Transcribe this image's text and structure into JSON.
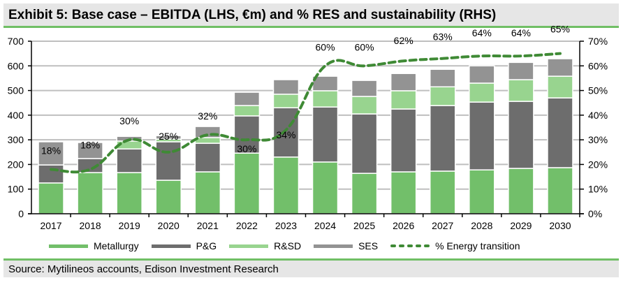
{
  "header": {
    "title": "Exhibit 5: Base case – EBITDA (LHS, €m) and % RES and sustainability (RHS)"
  },
  "footer": {
    "source": "Source: Mytilineos accounts, Edison Investment Research"
  },
  "colors": {
    "metallurgy": "#72bf6a",
    "pg": "#6d6d6d",
    "rsd": "#98d48f",
    "ses": "#939393",
    "energy_transition": "#3f8a35",
    "gridline": "#bfbfbf",
    "accent_rule": "#70bf65",
    "banner_bg": "#e6e6e6"
  },
  "chart_data": {
    "type": "bar",
    "stacked": true,
    "title": "Exhibit 5: Base case – EBITDA (LHS, €m) and % RES and sustainability (RHS)",
    "xlabel": "",
    "ylabel": "EBITDA (€m)",
    "y2label": "% RES and sustainability",
    "categories": [
      "2017",
      "2018",
      "2019",
      "2020",
      "2021",
      "2022",
      "2023",
      "2024",
      "2025",
      "2026",
      "2027",
      "2028",
      "2029",
      "2030"
    ],
    "ylim": [
      0,
      700
    ],
    "yticks": [
      "0",
      "100",
      "200",
      "300",
      "400",
      "500",
      "600",
      "700"
    ],
    "y2lim": [
      0,
      70
    ],
    "y2ticks": [
      "0%",
      "10%",
      "20%",
      "30%",
      "40%",
      "50%",
      "60%",
      "70%"
    ],
    "grid": true,
    "legend_position": "bottom",
    "series": [
      {
        "name": "Metallurgy",
        "key": "metallurgy",
        "axis": "left",
        "type": "bar",
        "values": [
          125,
          167,
          167,
          136,
          170,
          246,
          230,
          210,
          164,
          170,
          173,
          178,
          184,
          187
        ]
      },
      {
        "name": "P&G",
        "key": "pg",
        "axis": "left",
        "type": "bar",
        "values": [
          73,
          57,
          96,
          156,
          116,
          151,
          200,
          223,
          241,
          255,
          266,
          275,
          272,
          283
        ]
      },
      {
        "name": "R&SD",
        "key": "rsd",
        "axis": "left",
        "type": "bar",
        "values": [
          0,
          0,
          32,
          11,
          23,
          42,
          55,
          66,
          71,
          74,
          76,
          77,
          88,
          88
        ]
      },
      {
        "name": "SES",
        "key": "ses",
        "axis": "left",
        "type": "bar",
        "values": [
          94,
          65,
          19,
          14,
          45,
          54,
          59,
          59,
          65,
          70,
          71,
          70,
          70,
          71
        ]
      },
      {
        "name": "% Energy transition",
        "key": "energy_transition",
        "axis": "right",
        "type": "line",
        "style": "dashed",
        "values": [
          18,
          18,
          30,
          25,
          32,
          30,
          34,
          60,
          60,
          62,
          63,
          64,
          64,
          65
        ],
        "labels": [
          "18%",
          "18%",
          "30%",
          "25%",
          "32%",
          "30%",
          "34%",
          "60%",
          "60%",
          "62%",
          "63%",
          "64%",
          "64%",
          "65%"
        ]
      }
    ]
  }
}
